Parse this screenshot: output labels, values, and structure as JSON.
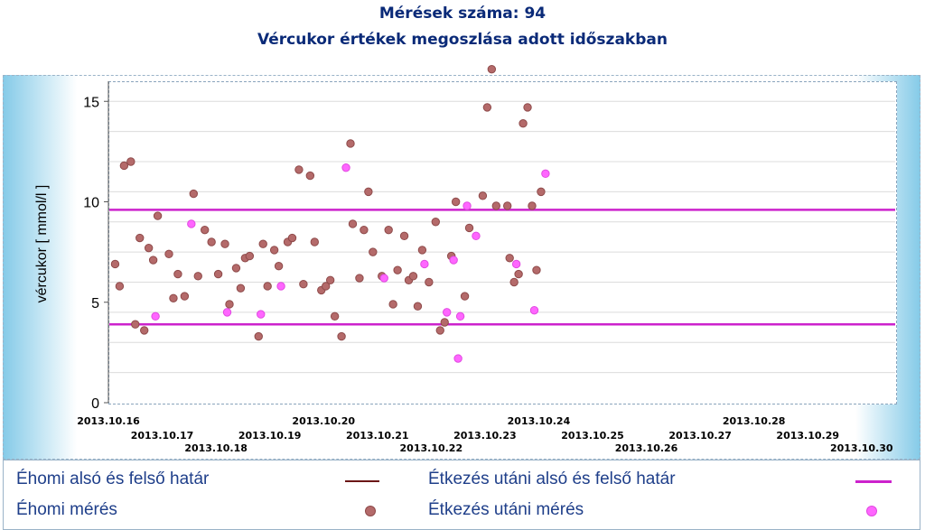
{
  "header": {
    "line1": "Mérések száma: 94",
    "line2": "Vércukor értékek megoszlása adott időszakban"
  },
  "chart_data": {
    "type": "scatter",
    "ylabel": "vércukor [ mmol/l ]",
    "ylim": [
      0,
      16
    ],
    "yticks": [
      0,
      5,
      10,
      15
    ],
    "grid": true,
    "xlim": [
      "2013.10.16 00:00",
      "2013.10.30 15:00"
    ],
    "xtick_labels": [
      {
        "label": "2013.10.16",
        "x": "2013.10.16 00:00",
        "row": 0
      },
      {
        "label": "2013.10.17",
        "x": "2013.10.17 00:00",
        "row": 1
      },
      {
        "label": "2013.10.18",
        "x": "2013.10.18 00:00",
        "row": 2
      },
      {
        "label": "2013.10.19",
        "x": "2013.10.19 00:00",
        "row": 1
      },
      {
        "label": "2013.10.20",
        "x": "2013.10.20 00:00",
        "row": 0
      },
      {
        "label": "2013.10.21",
        "x": "2013.10.21 00:00",
        "row": 1
      },
      {
        "label": "2013.10.22",
        "x": "2013.10.22 00:00",
        "row": 2
      },
      {
        "label": "2013.10.23",
        "x": "2013.10.23 00:00",
        "row": 1
      },
      {
        "label": "2013.10.24",
        "x": "2013.10.24 00:00",
        "row": 0
      },
      {
        "label": "2013.10.25",
        "x": "2013.10.25 00:00",
        "row": 1
      },
      {
        "label": "2013.10.26",
        "x": "2013.10.26 00:00",
        "row": 2
      },
      {
        "label": "2013.10.27",
        "x": "2013.10.27 00:00",
        "row": 1
      },
      {
        "label": "2013.10.28",
        "x": "2013.10.28 00:00",
        "row": 0
      },
      {
        "label": "2013.10.29",
        "x": "2013.10.29 00:00",
        "row": 1
      },
      {
        "label": "2013.10.30",
        "x": "2013.10.30 00:00",
        "row": 2
      }
    ],
    "reference_lines": [
      {
        "name": "Étkezés utáni alsó és felső határ",
        "y": 3.9,
        "color": "#cc22cc"
      },
      {
        "name": "Étkezés utáni alsó és felső határ",
        "y": 9.6,
        "color": "#cc22cc"
      }
    ],
    "series": [
      {
        "name": "Éhomi mérés",
        "color": "#b46a6a",
        "points": [
          {
            "x": "2013.10.16 03:00",
            "y": 6.9
          },
          {
            "x": "2013.10.16 05:00",
            "y": 5.8
          },
          {
            "x": "2013.10.16 07:00",
            "y": 11.8
          },
          {
            "x": "2013.10.16 10:00",
            "y": 12.0
          },
          {
            "x": "2013.10.16 12:00",
            "y": 3.9
          },
          {
            "x": "2013.10.16 16:00",
            "y": 3.6
          },
          {
            "x": "2013.10.16 14:00",
            "y": 8.2
          },
          {
            "x": "2013.10.16 18:00",
            "y": 7.7
          },
          {
            "x": "2013.10.16 20:00",
            "y": 7.1
          },
          {
            "x": "2013.10.16 22:00",
            "y": 9.3
          },
          {
            "x": "2013.10.17 03:00",
            "y": 7.4
          },
          {
            "x": "2013.10.17 05:00",
            "y": 5.2
          },
          {
            "x": "2013.10.17 07:00",
            "y": 6.4
          },
          {
            "x": "2013.10.17 10:00",
            "y": 5.3
          },
          {
            "x": "2013.10.17 14:00",
            "y": 10.4
          },
          {
            "x": "2013.10.17 16:00",
            "y": 6.3
          },
          {
            "x": "2013.10.17 19:00",
            "y": 8.6
          },
          {
            "x": "2013.10.17 22:00",
            "y": 8.0
          },
          {
            "x": "2013.10.18 01:00",
            "y": 6.4
          },
          {
            "x": "2013.10.18 04:00",
            "y": 7.9
          },
          {
            "x": "2013.10.18 06:00",
            "y": 4.9
          },
          {
            "x": "2013.10.18 09:00",
            "y": 6.7
          },
          {
            "x": "2013.10.18 11:00",
            "y": 5.7
          },
          {
            "x": "2013.10.18 13:00",
            "y": 7.2
          },
          {
            "x": "2013.10.18 15:00",
            "y": 7.3
          },
          {
            "x": "2013.10.18 19:00",
            "y": 3.3
          },
          {
            "x": "2013.10.18 21:00",
            "y": 7.9
          },
          {
            "x": "2013.10.18 23:00",
            "y": 5.8
          },
          {
            "x": "2013.10.19 02:00",
            "y": 7.6
          },
          {
            "x": "2013.10.19 04:00",
            "y": 6.8
          },
          {
            "x": "2013.10.19 08:00",
            "y": 8.0
          },
          {
            "x": "2013.10.19 10:00",
            "y": 8.2
          },
          {
            "x": "2013.10.19 13:00",
            "y": 11.6
          },
          {
            "x": "2013.10.19 15:00",
            "y": 5.9
          },
          {
            "x": "2013.10.19 18:00",
            "y": 11.3
          },
          {
            "x": "2013.10.19 20:00",
            "y": 8.0
          },
          {
            "x": "2013.10.19 23:00",
            "y": 5.6
          },
          {
            "x": "2013.10.20 01:00",
            "y": 5.8
          },
          {
            "x": "2013.10.20 03:00",
            "y": 6.1
          },
          {
            "x": "2013.10.20 05:00",
            "y": 4.3
          },
          {
            "x": "2013.10.20 08:00",
            "y": 3.3
          },
          {
            "x": "2013.10.20 12:00",
            "y": 12.9
          },
          {
            "x": "2013.10.20 13:00",
            "y": 8.9
          },
          {
            "x": "2013.10.20 16:00",
            "y": 6.2
          },
          {
            "x": "2013.10.20 18:00",
            "y": 8.6
          },
          {
            "x": "2013.10.20 20:00",
            "y": 10.5
          },
          {
            "x": "2013.10.20 22:00",
            "y": 7.5
          },
          {
            "x": "2013.10.21 02:00",
            "y": 6.3
          },
          {
            "x": "2013.10.21 05:00",
            "y": 8.6
          },
          {
            "x": "2013.10.21 07:00",
            "y": 4.9
          },
          {
            "x": "2013.10.21 09:00",
            "y": 6.6
          },
          {
            "x": "2013.10.21 12:00",
            "y": 8.3
          },
          {
            "x": "2013.10.21 14:00",
            "y": 6.1
          },
          {
            "x": "2013.10.21 16:00",
            "y": 6.3
          },
          {
            "x": "2013.10.21 18:00",
            "y": 4.8
          },
          {
            "x": "2013.10.21 20:00",
            "y": 7.6
          },
          {
            "x": "2013.10.21 23:00",
            "y": 6.0
          },
          {
            "x": "2013.10.22 02:00",
            "y": 9.0
          },
          {
            "x": "2013.10.22 04:00",
            "y": 3.6
          },
          {
            "x": "2013.10.22 06:00",
            "y": 4.0
          },
          {
            "x": "2013.10.22 09:00",
            "y": 7.3
          },
          {
            "x": "2013.10.22 11:00",
            "y": 10.0
          },
          {
            "x": "2013.10.22 15:00",
            "y": 5.3
          },
          {
            "x": "2013.10.22 17:00",
            "y": 8.7
          },
          {
            "x": "2013.10.22 23:00",
            "y": 10.3
          },
          {
            "x": "2013.10.23 01:00",
            "y": 14.7
          },
          {
            "x": "2013.10.23 03:00",
            "y": 16.6
          },
          {
            "x": "2013.10.23 05:00",
            "y": 9.8
          },
          {
            "x": "2013.10.23 10:00",
            "y": 9.8
          },
          {
            "x": "2013.10.23 11:00",
            "y": 7.2
          },
          {
            "x": "2013.10.23 13:00",
            "y": 6.0
          },
          {
            "x": "2013.10.23 15:00",
            "y": 6.4
          },
          {
            "x": "2013.10.23 17:00",
            "y": 13.9
          },
          {
            "x": "2013.10.23 19:00",
            "y": 14.7
          },
          {
            "x": "2013.10.23 21:00",
            "y": 9.8
          },
          {
            "x": "2013.10.23 23:00",
            "y": 6.6
          },
          {
            "x": "2013.10.24 01:00",
            "y": 10.5
          }
        ]
      },
      {
        "name": "Étkezés utáni mérés",
        "color": "#ff66ff",
        "points": [
          {
            "x": "2013.10.16 21:00",
            "y": 4.3
          },
          {
            "x": "2013.10.17 13:00",
            "y": 8.9
          },
          {
            "x": "2013.10.18 05:00",
            "y": 4.5
          },
          {
            "x": "2013.10.18 20:00",
            "y": 4.4
          },
          {
            "x": "2013.10.19 05:00",
            "y": 5.8
          },
          {
            "x": "2013.10.20 10:00",
            "y": 11.7
          },
          {
            "x": "2013.10.21 03:00",
            "y": 6.2
          },
          {
            "x": "2013.10.21 21:00",
            "y": 6.9
          },
          {
            "x": "2013.10.22 07:00",
            "y": 4.5
          },
          {
            "x": "2013.10.22 10:00",
            "y": 7.1
          },
          {
            "x": "2013.10.22 12:00",
            "y": 2.2
          },
          {
            "x": "2013.10.22 13:00",
            "y": 4.3
          },
          {
            "x": "2013.10.22 16:00",
            "y": 9.8
          },
          {
            "x": "2013.10.22 20:00",
            "y": 8.3
          },
          {
            "x": "2013.10.23 14:00",
            "y": 6.9
          },
          {
            "x": "2013.10.23 22:00",
            "y": 4.6
          },
          {
            "x": "2013.10.24 03:00",
            "y": 11.4
          }
        ]
      }
    ]
  },
  "legend": {
    "items": [
      {
        "label": "Éhomi alsó és felső határ",
        "color": "#6b1616",
        "symbol": "line"
      },
      {
        "label": "Étkezés utáni alsó és felső határ",
        "color": "#cc22cc",
        "symbol": "line"
      },
      {
        "label": "Éhomi mérés",
        "color": "#b46a6a",
        "symbol": "dot"
      },
      {
        "label": "Étkezés utáni mérés",
        "color": "#ff66ff",
        "symbol": "dot"
      }
    ]
  }
}
